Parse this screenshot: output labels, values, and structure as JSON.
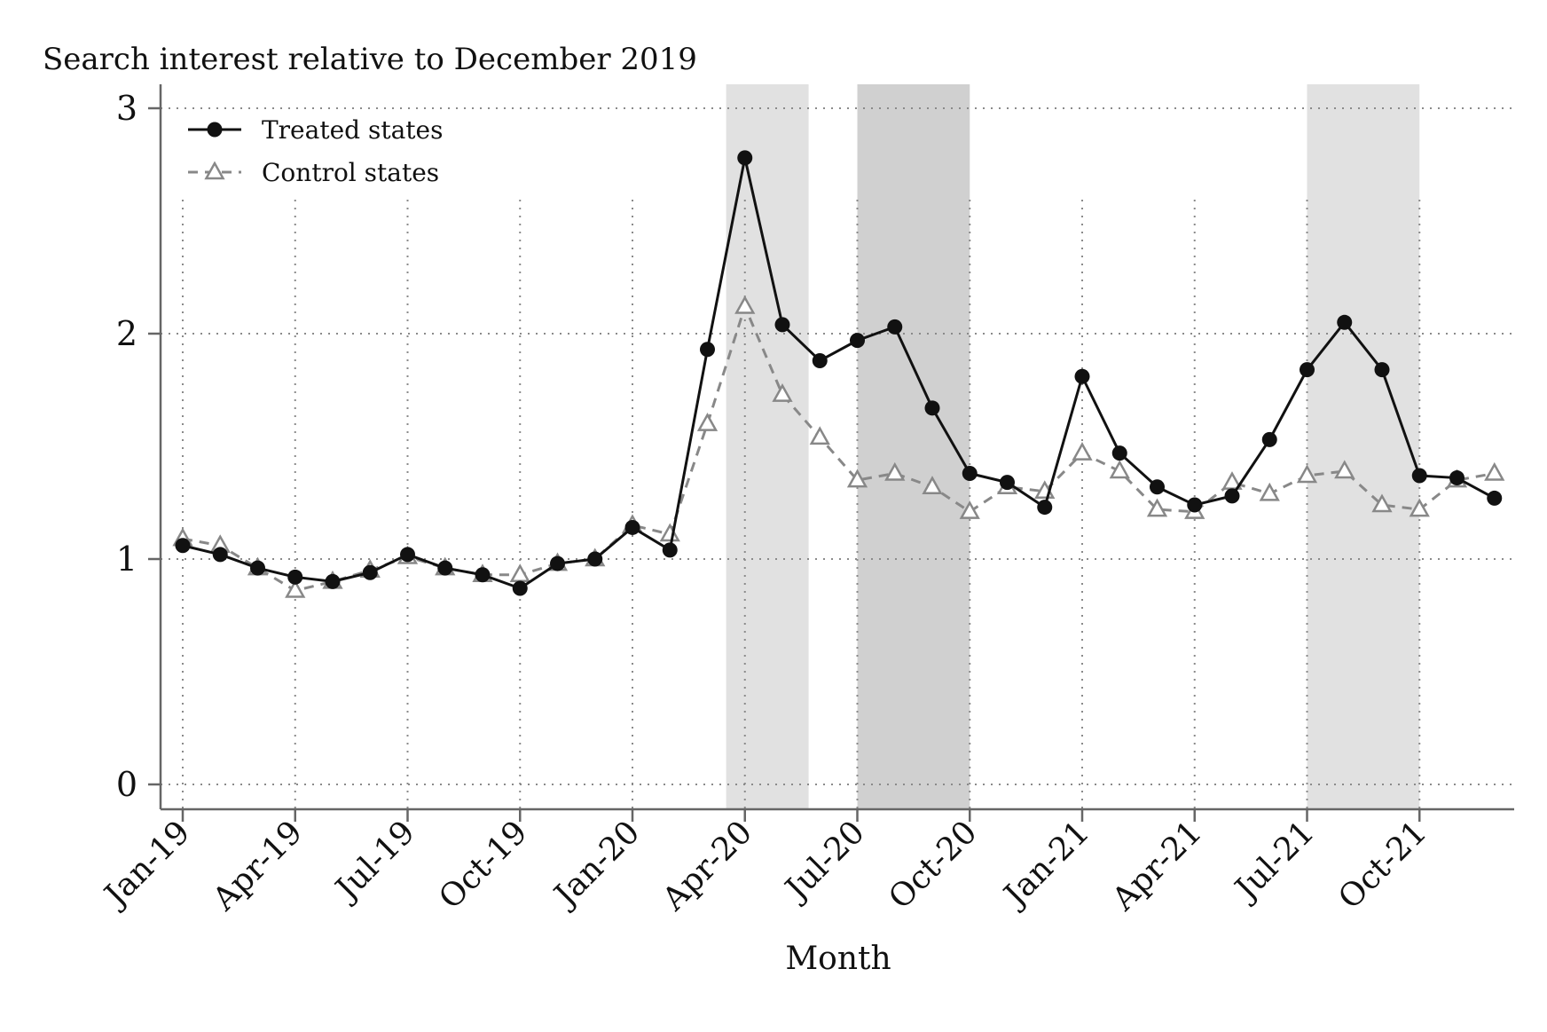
{
  "chart_data": {
    "type": "line",
    "title": "Search interest relative to December 2019",
    "xlabel": "Month",
    "ylabel": "",
    "ylim": [
      0,
      3
    ],
    "yticks": [
      "0",
      "1",
      "2",
      "3"
    ],
    "grid": true,
    "legend_position": "top-left",
    "x": [
      "Jan-19",
      "Feb-19",
      "Mar-19",
      "Apr-19",
      "May-19",
      "Jun-19",
      "Jul-19",
      "Aug-19",
      "Sep-19",
      "Oct-19",
      "Nov-19",
      "Dec-19",
      "Jan-20",
      "Feb-20",
      "Mar-20",
      "Apr-20",
      "May-20",
      "Jun-20",
      "Jul-20",
      "Aug-20",
      "Sep-20",
      "Oct-20",
      "Nov-20",
      "Dec-20",
      "Jan-21",
      "Feb-21",
      "Mar-21",
      "Apr-21",
      "May-21",
      "Jun-21",
      "Jul-21",
      "Aug-21",
      "Sep-21",
      "Oct-21",
      "Nov-21",
      "Dec-21"
    ],
    "xtick_labels": [
      "Jan-19",
      "Apr-19",
      "Jul-19",
      "Oct-19",
      "Jan-20",
      "Apr-20",
      "Jul-20",
      "Oct-20",
      "Jan-21",
      "Apr-21",
      "Jul-21",
      "Oct-21"
    ],
    "shaded_periods": [
      {
        "start": 14.5,
        "end": 16.7,
        "color": "#e1e1e1"
      },
      {
        "start": 18.0,
        "end": 21.0,
        "color": "#d0d0d0"
      },
      {
        "start": 30.0,
        "end": 33.0,
        "color": "#e1e1e1"
      }
    ],
    "series": [
      {
        "name": "Treated states",
        "color": "#111111",
        "marker": "circle",
        "dash": "solid",
        "values": [
          1.06,
          1.02,
          0.96,
          0.92,
          0.9,
          0.94,
          1.02,
          0.96,
          0.93,
          0.87,
          0.98,
          1.0,
          1.14,
          1.04,
          1.93,
          2.78,
          2.04,
          1.88,
          1.97,
          2.03,
          1.67,
          1.38,
          1.34,
          1.23,
          1.81,
          1.47,
          1.32,
          1.24,
          1.28,
          1.53,
          1.84,
          2.05,
          1.84,
          1.37,
          1.36,
          1.27
        ]
      },
      {
        "name": "Control states",
        "color": "#888888",
        "marker": "triangle",
        "dash": "dashed",
        "values": [
          1.09,
          1.06,
          0.96,
          0.86,
          0.9,
          0.95,
          1.01,
          0.96,
          0.93,
          0.93,
          0.98,
          1.0,
          1.15,
          1.11,
          1.6,
          2.12,
          1.73,
          1.54,
          1.35,
          1.38,
          1.32,
          1.21,
          1.32,
          1.3,
          1.47,
          1.39,
          1.22,
          1.21,
          1.34,
          1.29,
          1.37,
          1.39,
          1.24,
          1.22,
          1.35,
          1.38
        ]
      }
    ]
  }
}
